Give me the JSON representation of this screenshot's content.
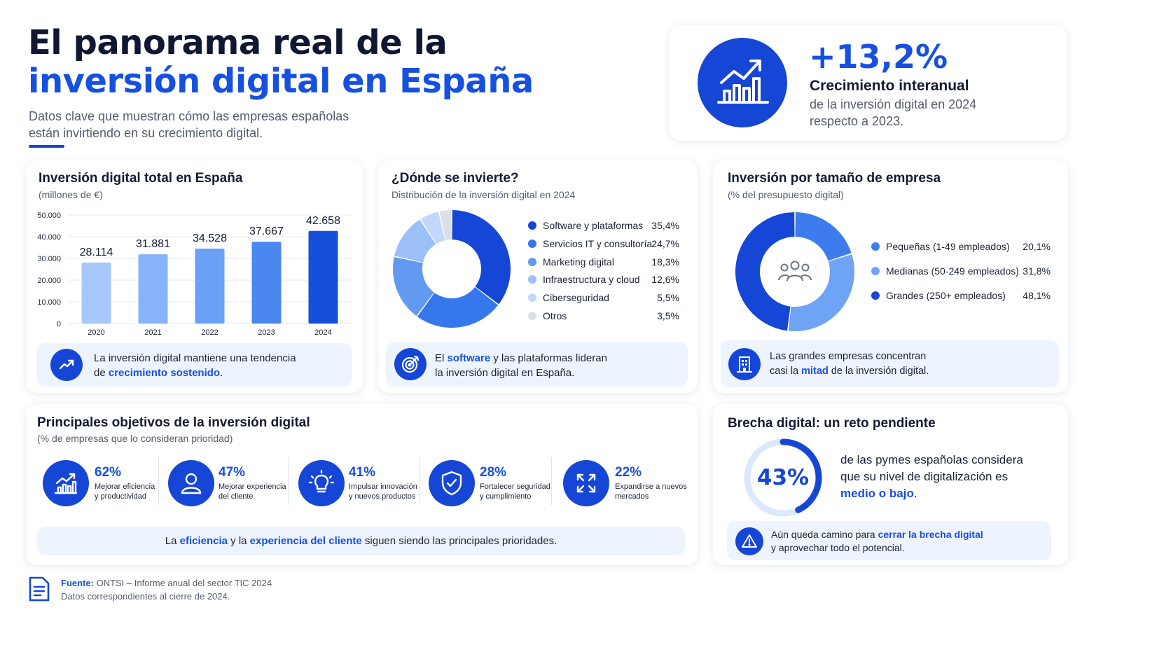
{
  "header": {
    "title_line1": "El panorama real de la",
    "title_line2": "inversión digital en España",
    "subtitle_line1": "Datos clave que muestran cómo las empresas españolas",
    "subtitle_line2": "están invirtiendo en su crecimiento digital."
  },
  "kpi": {
    "value": "+13,2%",
    "label": "Crecimiento interanual",
    "desc_line1": "de la inversión digital en 2024",
    "desc_line2": "respecto a 2023.",
    "icon": "growth-chart-icon"
  },
  "investment_card": {
    "title": "Inversión digital total en España",
    "subtitle": "(millones de €)",
    "note_pre": "La inversión digital mantiene una tendencia",
    "note_mid": "de ",
    "note_hl": "crecimiento sostenido",
    "note_post": ".",
    "note_icon": "trend-up-icon"
  },
  "where_card": {
    "title": "¿Dónde se invierte?",
    "subtitle": "Distribución de la inversión digital en 2024",
    "note_pre": "El ",
    "note_hl": "software",
    "note_mid": " y las plataformas lideran",
    "note_line2": "la inversión digital en España.",
    "note_icon": "target-icon"
  },
  "size_card": {
    "title": "Inversión por tamaño de empresa",
    "subtitle": "(% del presupuesto digital)",
    "center_icon": "people-icon",
    "note_line1": "Las grandes empresas concentran",
    "note_pre2": "casi la ",
    "note_hl": "mitad",
    "note_post2": " de la inversión digital.",
    "note_icon": "building-icon"
  },
  "objectives_card": {
    "title": "Principales objetivos de la inversión digital",
    "subtitle": "(% de empresas que lo consideran prioridad)",
    "items": [
      {
        "pct": "62%",
        "line1": "Mejorar eficiencia",
        "line2": "y productividad",
        "icon": "bar-growth-icon"
      },
      {
        "pct": "47%",
        "line1": "Mejorar experiencia",
        "line2": "del cliente",
        "icon": "user-icon"
      },
      {
        "pct": "41%",
        "line1": "Impulsar innovación",
        "line2": "y nuevos productos",
        "icon": "lightbulb-icon"
      },
      {
        "pct": "28%",
        "line1": "Fortalecer seguridad",
        "line2": "y cumplimiento",
        "icon": "shield-check-icon"
      },
      {
        "pct": "22%",
        "line1": "Expandirse a nuevos",
        "line2": "mercados",
        "icon": "expand-arrows-icon"
      }
    ],
    "note_pre": "La ",
    "note_hl1": "eficiencia",
    "note_mid": " y la ",
    "note_hl2": "experiencia del cliente",
    "note_post": " siguen siendo las principales prioridades."
  },
  "gap_card": {
    "title": "Brecha digital: un reto pendiente",
    "value": "43%",
    "fraction": 0.43,
    "text_line1": "de las pymes españolas considera",
    "text_line2": "que su nivel de digitalización es",
    "text_hl": "medio o bajo",
    "text_post": ".",
    "note_pre": "Aún queda camino para ",
    "note_hl": "cerrar la brecha digital",
    "note_line2": "y aprovechar todo el potencial.",
    "note_icon": "warning-icon"
  },
  "footer": {
    "source_label": "Fuente:",
    "source_text": " ONTSI – Informe anual del sector TIC 2024",
    "line2": "Datos correspondientes al cierre de 2024.",
    "icon": "document-icon"
  },
  "colors": {
    "primary": "#1546d6",
    "accent_text": "#1650e0",
    "dark_text": "#141a33",
    "note_bg": "#eef4fd"
  },
  "chart_data": [
    {
      "type": "bar",
      "title": "Inversión digital total en España",
      "ylabel": "(millones de €)",
      "categories": [
        "2020",
        "2021",
        "2022",
        "2023",
        "2024"
      ],
      "values": [
        28114,
        31881,
        34528,
        37667,
        42658
      ],
      "value_labels": [
        "28.114",
        "31.881",
        "34.528",
        "37.667",
        "42.658"
      ],
      "yticks": [
        "0",
        "10.000",
        "20.000",
        "30.000",
        "40.000",
        "50.000"
      ],
      "ylim": [
        0,
        50000
      ],
      "colors": [
        "#a7c8fb",
        "#86b3f9",
        "#6aa0f6",
        "#4a88f0",
        "#1550d9"
      ],
      "grid": true
    },
    {
      "type": "pie",
      "title": "¿Dónde se invierte?",
      "labels": [
        "Software y plataformas",
        "Servicios IT y consultoría",
        "Marketing digital",
        "Infraestructura y cloud",
        "Ciberseguridad",
        "Otros"
      ],
      "values": [
        35.4,
        24.7,
        18.3,
        12.6,
        5.5,
        3.5
      ],
      "value_labels": [
        "35,4%",
        "24,7%",
        "18,3%",
        "12,6%",
        "5,5%",
        "3,5%"
      ],
      "colors": [
        "#1546d6",
        "#3677ec",
        "#6399f1",
        "#9bbff7",
        "#c2d8fb",
        "#dcdfe5"
      ],
      "legend": "right"
    },
    {
      "type": "pie",
      "title": "Inversión por tamaño de empresa",
      "labels": [
        "Pequeñas (1-49 empleados)",
        "Medianas (50-249 empleados)",
        "Grandes (250+ empleados)"
      ],
      "values": [
        20.1,
        31.8,
        48.1
      ],
      "value_labels": [
        "20,1%",
        "31,8%",
        "48,1%"
      ],
      "colors": [
        "#3d7cec",
        "#6fa4f5",
        "#1546d6"
      ],
      "legend": "right"
    }
  ]
}
